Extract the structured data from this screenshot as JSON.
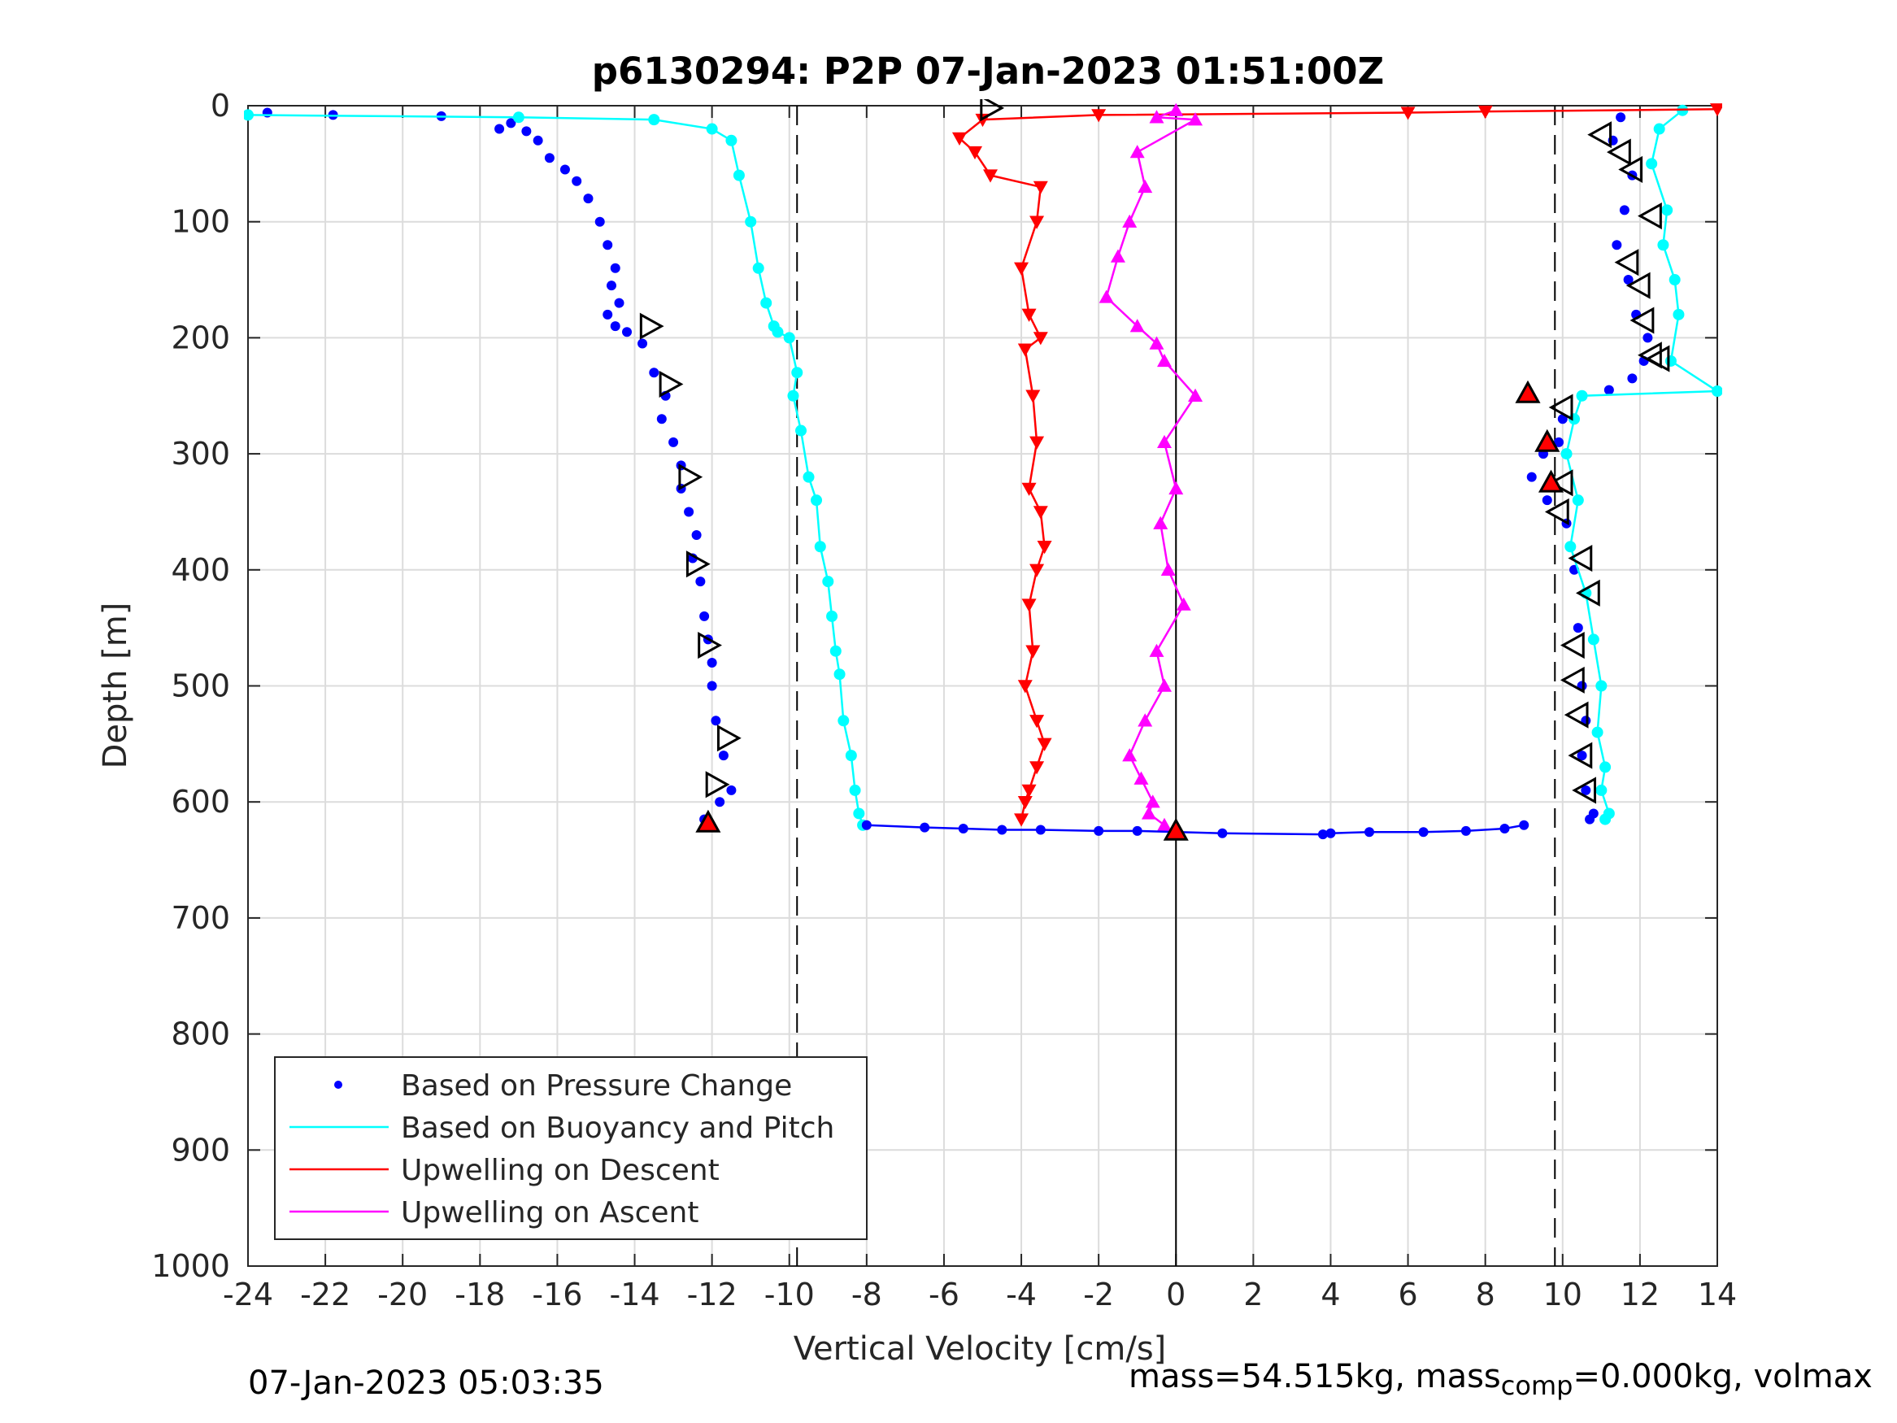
{
  "chart_data": {
    "type": "scatter",
    "title": "p6130294: P2P 07-Jan-2023 01:51:00Z",
    "xlabel": "Vertical Velocity [cm/s]",
    "ylabel": "Depth [m]",
    "xlim": [
      -24,
      14
    ],
    "ylim": [
      0,
      1000
    ],
    "y_reversed": true,
    "grid": true,
    "legend_position": "bottom-left",
    "x_ticks": [
      "-24",
      "-22",
      "-20",
      "-18",
      "-16",
      "-14",
      "-12",
      "-10",
      "-8",
      "-6",
      "-4",
      "-2",
      "0",
      "2",
      "4",
      "6",
      "8",
      "10",
      "12",
      "14"
    ],
    "y_ticks": [
      "0",
      "100",
      "200",
      "300",
      "400",
      "500",
      "600",
      "700",
      "800",
      "900",
      "1000"
    ],
    "colors": {
      "pressure": "#0000ff",
      "buoyancy": "#00ffff",
      "upwelling_descent": "#ff0000",
      "upwelling_ascent": "#ff00ff",
      "reference_lines": "#000000"
    },
    "reference_lines": {
      "dashed_x": [
        -9.8,
        9.8
      ],
      "solid_x": [
        0
      ]
    },
    "legend": [
      {
        "label": "Based on Pressure Change",
        "style": "dots",
        "color": "#0000ff"
      },
      {
        "label": "Based on Buoyancy and Pitch",
        "style": "line",
        "color": "#00ffff"
      },
      {
        "label": "Upwelling on Descent",
        "style": "line",
        "color": "#ff0000"
      },
      {
        "label": "Upwelling on Ascent",
        "style": "line",
        "color": "#ff00ff"
      }
    ],
    "series": [
      {
        "key": "pressure_descent",
        "color": "#0000ff",
        "x": [
          -23.5,
          -21.8,
          -19,
          -17.5,
          -17.2,
          -16.8,
          -16.5,
          -16.2,
          -15.8,
          -15.5,
          -15.2,
          -14.9,
          -14.7,
          -14.5,
          -14.6,
          -14.4,
          -14.7,
          -14.5,
          -14.2,
          -13.8,
          -13.5,
          -13.2,
          -13.3,
          -13,
          -12.8,
          -12.8,
          -12.6,
          -12.4,
          -12.5,
          -12.3,
          -12.2,
          -12.1,
          -12,
          -12,
          -11.9,
          -11.7,
          -11.5,
          -11.8,
          -12.2
        ],
        "depth": [
          6,
          8,
          9,
          20,
          15,
          22,
          30,
          45,
          55,
          65,
          80,
          100,
          120,
          140,
          155,
          170,
          180,
          190,
          195,
          205,
          230,
          250,
          270,
          290,
          310,
          330,
          350,
          370,
          390,
          410,
          440,
          460,
          480,
          500,
          530,
          560,
          590,
          600,
          615
        ]
      },
      {
        "key": "buoyancy_descent",
        "color": "#00ffff",
        "x": [
          -24,
          -17,
          -13.5,
          -12,
          -11.5,
          -11.3,
          -11,
          -10.8,
          -10.6,
          -10.4,
          -10.3,
          -10,
          -9.8,
          -9.9,
          -9.7,
          -9.5,
          -9.3,
          -9.2,
          -9,
          -8.9,
          -8.8,
          -8.7,
          -8.6,
          -8.4,
          -8.3,
          -8.2,
          -8.1
        ],
        "depth": [
          8,
          10,
          12,
          20,
          30,
          60,
          100,
          140,
          170,
          190,
          195,
          200,
          230,
          250,
          280,
          320,
          340,
          380,
          410,
          440,
          470,
          490,
          530,
          560,
          590,
          610,
          620
        ]
      },
      {
        "key": "pressure_ascent",
        "color": "#0000ff",
        "x": [
          11.5,
          11.3,
          11.8,
          11.6,
          11.4,
          11.7,
          11.9,
          12.2,
          12.1,
          11.8,
          11.2,
          10.5,
          10,
          9.9,
          9.5,
          9.2,
          9.6,
          10.1,
          10.3,
          10.4,
          10.5,
          10.6,
          10.5,
          10.6,
          10.8,
          10.7
        ],
        "depth": [
          10,
          30,
          60,
          90,
          120,
          150,
          180,
          200,
          220,
          235,
          245,
          250,
          270,
          290,
          300,
          320,
          340,
          360,
          400,
          450,
          500,
          530,
          560,
          590,
          610,
          615
        ]
      },
      {
        "key": "buoyancy_ascent",
        "color": "#00ffff",
        "x": [
          13.1,
          12.5,
          12.3,
          12.7,
          12.6,
          12.9,
          13,
          12.8,
          14,
          10.5,
          10.3,
          10.1,
          10.4,
          10.2,
          10.6,
          10.8,
          11,
          10.9,
          11.1,
          11,
          11.2,
          11.1
        ],
        "depth": [
          4,
          20,
          50,
          90,
          120,
          150,
          180,
          220,
          246,
          250,
          270,
          300,
          340,
          380,
          420,
          460,
          500,
          540,
          570,
          590,
          610,
          615
        ]
      },
      {
        "key": "upwelling_descent",
        "color": "#ff0000",
        "x": [
          14,
          8,
          6,
          -2,
          -5,
          -5.6,
          -5.2,
          -4.8,
          -3.5,
          -3.6,
          -4,
          -3.8,
          -3.5,
          -3.9,
          -3.7,
          -3.6,
          -3.8,
          -3.5,
          -3.4,
          -3.6,
          -3.8,
          -3.7,
          -3.9,
          -3.6,
          -3.4,
          -3.6,
          -3.8,
          -3.9,
          -4
        ],
        "depth": [
          3,
          5,
          6,
          8,
          12,
          28,
          40,
          60,
          70,
          100,
          140,
          180,
          200,
          210,
          250,
          290,
          330,
          350,
          380,
          400,
          430,
          470,
          500,
          530,
          550,
          570,
          590,
          600,
          615
        ]
      },
      {
        "key": "upwelling_ascent",
        "color": "#ff00ff",
        "x": [
          0,
          -0.5,
          0.5,
          -1,
          -0.8,
          -1.2,
          -1.5,
          -1.8,
          -1,
          -0.5,
          -0.3,
          0.5,
          -0.3,
          0,
          -0.4,
          -0.2,
          0.2,
          -0.5,
          -0.3,
          -0.8,
          -1.2,
          -0.9,
          -0.6,
          -0.7,
          -0.3
        ],
        "depth": [
          4,
          10,
          12,
          40,
          70,
          100,
          130,
          165,
          190,
          205,
          220,
          250,
          290,
          330,
          360,
          400,
          430,
          470,
          500,
          530,
          560,
          580,
          600,
          610,
          620
        ]
      },
      {
        "key": "apogee_transition",
        "color": "#0000ff",
        "x": [
          -8,
          -6.5,
          -5.5,
          -4.5,
          -3.5,
          -2,
          -1,
          1.2,
          3.8,
          4,
          5,
          6.4,
          7.5,
          8.5,
          9
        ],
        "depth": [
          620,
          622,
          623,
          624,
          624,
          625,
          625,
          627,
          628,
          627,
          626,
          626,
          625,
          623,
          620
        ]
      }
    ],
    "markers": [
      {
        "kind": "dive",
        "x": [
          -4.8,
          -13.6,
          -13.1,
          -12.6,
          -12.4,
          -12.1,
          -11.6,
          -11.9
        ],
        "depth": [
          2,
          190,
          240,
          320,
          395,
          465,
          545,
          585
        ]
      },
      {
        "kind": "climb",
        "x": [
          11,
          11.5,
          11.8,
          12.3,
          11.7,
          12,
          12.1,
          12.3,
          12.5,
          10,
          10,
          9.9,
          10.5,
          10.7,
          10.3,
          10.3,
          10.4,
          10.5,
          10.6
        ],
        "depth": [
          25,
          40,
          55,
          95,
          135,
          155,
          185,
          215,
          218,
          260,
          325,
          350,
          390,
          420,
          465,
          495,
          525,
          560,
          590
        ]
      },
      {
        "kind": "apogee",
        "x": [
          -12.1,
          0,
          9.1,
          9.6,
          9.7
        ],
        "depth": [
          618,
          625,
          248,
          290,
          325
        ]
      }
    ]
  },
  "footer": {
    "timestamp": "07-Jan-2023 05:03:35",
    "mass_text": "mass=54.515kg, mass",
    "mass_sub": "comp",
    "mass_rest": "=0.000kg, volmax"
  }
}
